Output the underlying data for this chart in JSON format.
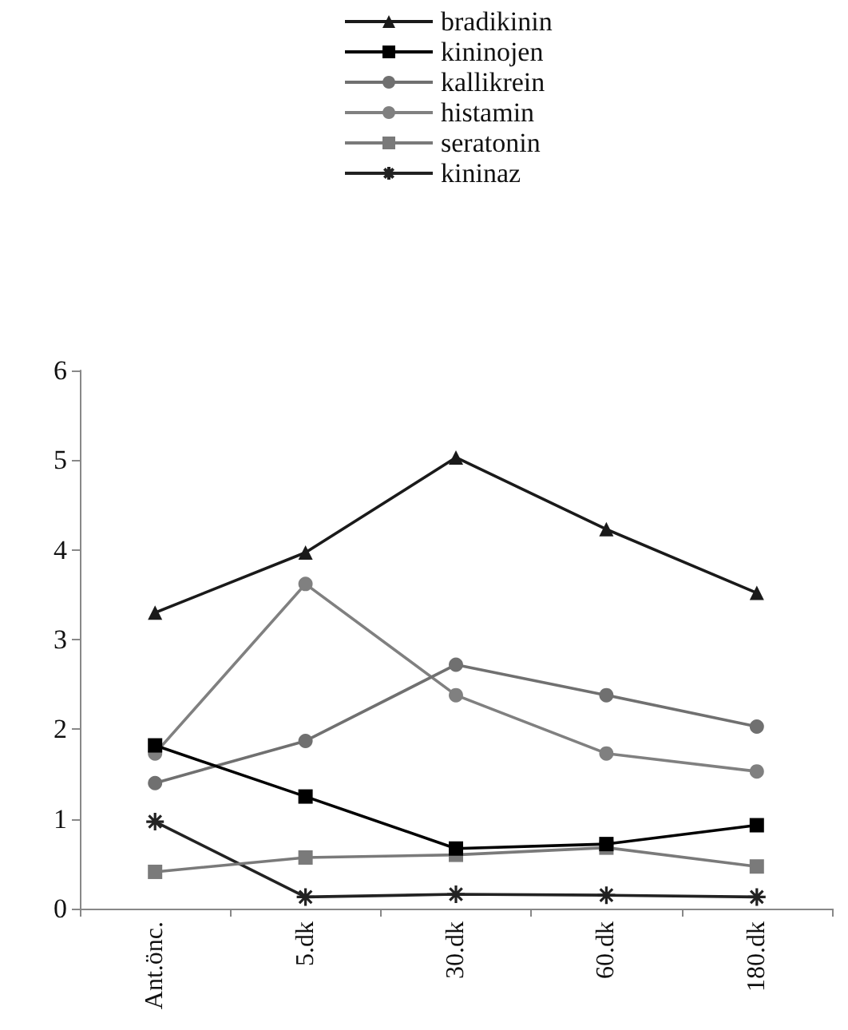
{
  "chart_data": {
    "type": "line",
    "categories": [
      "Ant.önc.",
      "5.dk",
      "30.dk",
      "60.dk",
      "180.dk"
    ],
    "ylim": [
      0,
      6
    ],
    "yticks": [
      0,
      1,
      2,
      3,
      4,
      5,
      6
    ],
    "grid": false,
    "legend": "top",
    "tick_labels": "xy",
    "series": [
      {
        "name": "bradikinin",
        "color": "#1a1a1a",
        "marker": "triangle",
        "values": [
          3.3,
          3.97,
          5.03,
          4.23,
          3.52
        ]
      },
      {
        "name": "kininojen",
        "color": "#000000",
        "marker": "square",
        "values": [
          1.82,
          1.25,
          0.67,
          0.72,
          0.93
        ]
      },
      {
        "name": "kallikrein",
        "color": "#707070",
        "marker": "circle",
        "values": [
          1.4,
          1.87,
          2.72,
          2.38,
          2.03
        ]
      },
      {
        "name": "histamin",
        "color": "#808080",
        "marker": "circle",
        "values": [
          1.73,
          3.62,
          2.38,
          1.73,
          1.53
        ]
      },
      {
        "name": "seratonin",
        "color": "#7a7a7a",
        "marker": "square",
        "values": [
          0.41,
          0.57,
          0.6,
          0.68,
          0.47
        ]
      },
      {
        "name": "kininaz",
        "color": "#222222",
        "marker": "cross",
        "values": [
          0.97,
          0.13,
          0.16,
          0.15,
          0.13
        ]
      }
    ]
  }
}
